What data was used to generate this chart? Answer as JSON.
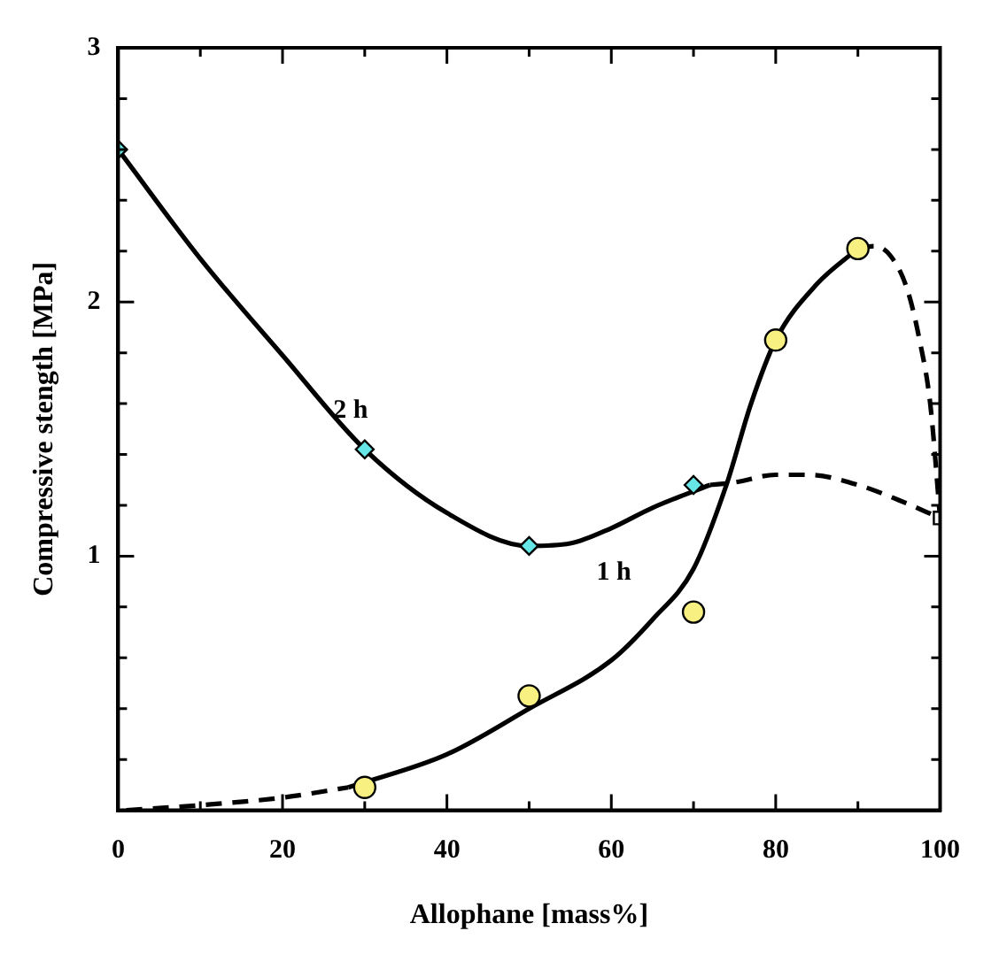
{
  "chart_data": {
    "type": "scatter",
    "xlabel": "Allophane [mass%]",
    "ylabel": "Compressive stength [MPa]",
    "xlim": [
      0,
      100
    ],
    "ylim": [
      0,
      3
    ],
    "xticks": [
      0,
      {
        "value": 10,
        "label": null
      },
      20,
      {
        "value": 30,
        "label": null
      },
      40,
      {
        "value": 50,
        "label": null
      },
      60,
      {
        "value": 70,
        "label": null
      },
      80,
      {
        "value": 90,
        "label": null
      },
      100
    ],
    "yticks": [
      {
        "value": 0,
        "label": null
      },
      {
        "value": 0.2,
        "label": null
      },
      {
        "value": 0.4,
        "label": null
      },
      {
        "value": 0.6,
        "label": null
      },
      {
        "value": 0.8,
        "label": null
      },
      1,
      {
        "value": 1.2,
        "label": null
      },
      {
        "value": 1.4,
        "label": null
      },
      {
        "value": 1.6,
        "label": null
      },
      {
        "value": 1.8,
        "label": null
      },
      2,
      {
        "value": 2.2,
        "label": null
      },
      {
        "value": 2.4,
        "label": null
      },
      {
        "value": 2.6,
        "label": null
      },
      {
        "value": 2.8,
        "label": null
      },
      3
    ],
    "grid": false,
    "legend": false,
    "series": [
      {
        "type": "line",
        "color": "#000000",
        "line_style": "solid",
        "marker": "none",
        "x": [
          0,
          10,
          20,
          30,
          40,
          50,
          55,
          60,
          65,
          72
        ],
        "values": [
          2.6,
          2.17,
          1.79,
          1.42,
          1.17,
          1.04,
          1.05,
          1.11,
          1.19,
          1.28
        ]
      },
      {
        "type": "line",
        "color": "#000000",
        "line_style": "dashed",
        "marker": "none",
        "x": [
          72,
          75,
          80,
          84,
          90,
          95,
          100
        ],
        "values": [
          1.28,
          1.29,
          1.32,
          1.32,
          1.28,
          1.22,
          1.15
        ]
      },
      {
        "type": "line",
        "color": "#000000",
        "line_style": "dashed",
        "marker": "none",
        "x": [
          1,
          10,
          20,
          28
        ],
        "values": [
          0,
          0.02,
          0.05,
          0.09
        ]
      },
      {
        "type": "line",
        "color": "#000000",
        "line_style": "solid",
        "marker": "none",
        "x": [
          28,
          40,
          50,
          60,
          65,
          70,
          74,
          77,
          80,
          85,
          90
        ],
        "values": [
          0.09,
          0.22,
          0.4,
          0.59,
          0.75,
          0.95,
          1.28,
          1.6,
          1.85,
          2.07,
          2.21
        ]
      },
      {
        "type": "line",
        "color": "#000000",
        "line_style": "dashed",
        "marker": "none",
        "x": [
          90,
          92,
          94,
          96,
          97.5,
          98.8,
          100
        ],
        "values": [
          2.21,
          2.22,
          2.18,
          2.05,
          1.85,
          1.6,
          1.15
        ]
      },
      {
        "type": "scatter",
        "name": "2 h",
        "color": "#66e6e6",
        "marker": "diamond",
        "x": [
          0,
          30,
          50,
          70
        ],
        "values": [
          2.6,
          1.42,
          1.04,
          1.28
        ]
      },
      {
        "type": "scatter",
        "name": "1 h",
        "color": "#f8f080",
        "marker": "circle",
        "x": [
          30,
          50,
          70,
          80,
          90
        ],
        "values": [
          0.09,
          0.45,
          0.78,
          1.85,
          2.21
        ]
      },
      {
        "type": "scatter",
        "color": "#ffffff",
        "marker": "square",
        "x": [
          100
        ],
        "values": [
          1.15
        ]
      }
    ]
  }
}
